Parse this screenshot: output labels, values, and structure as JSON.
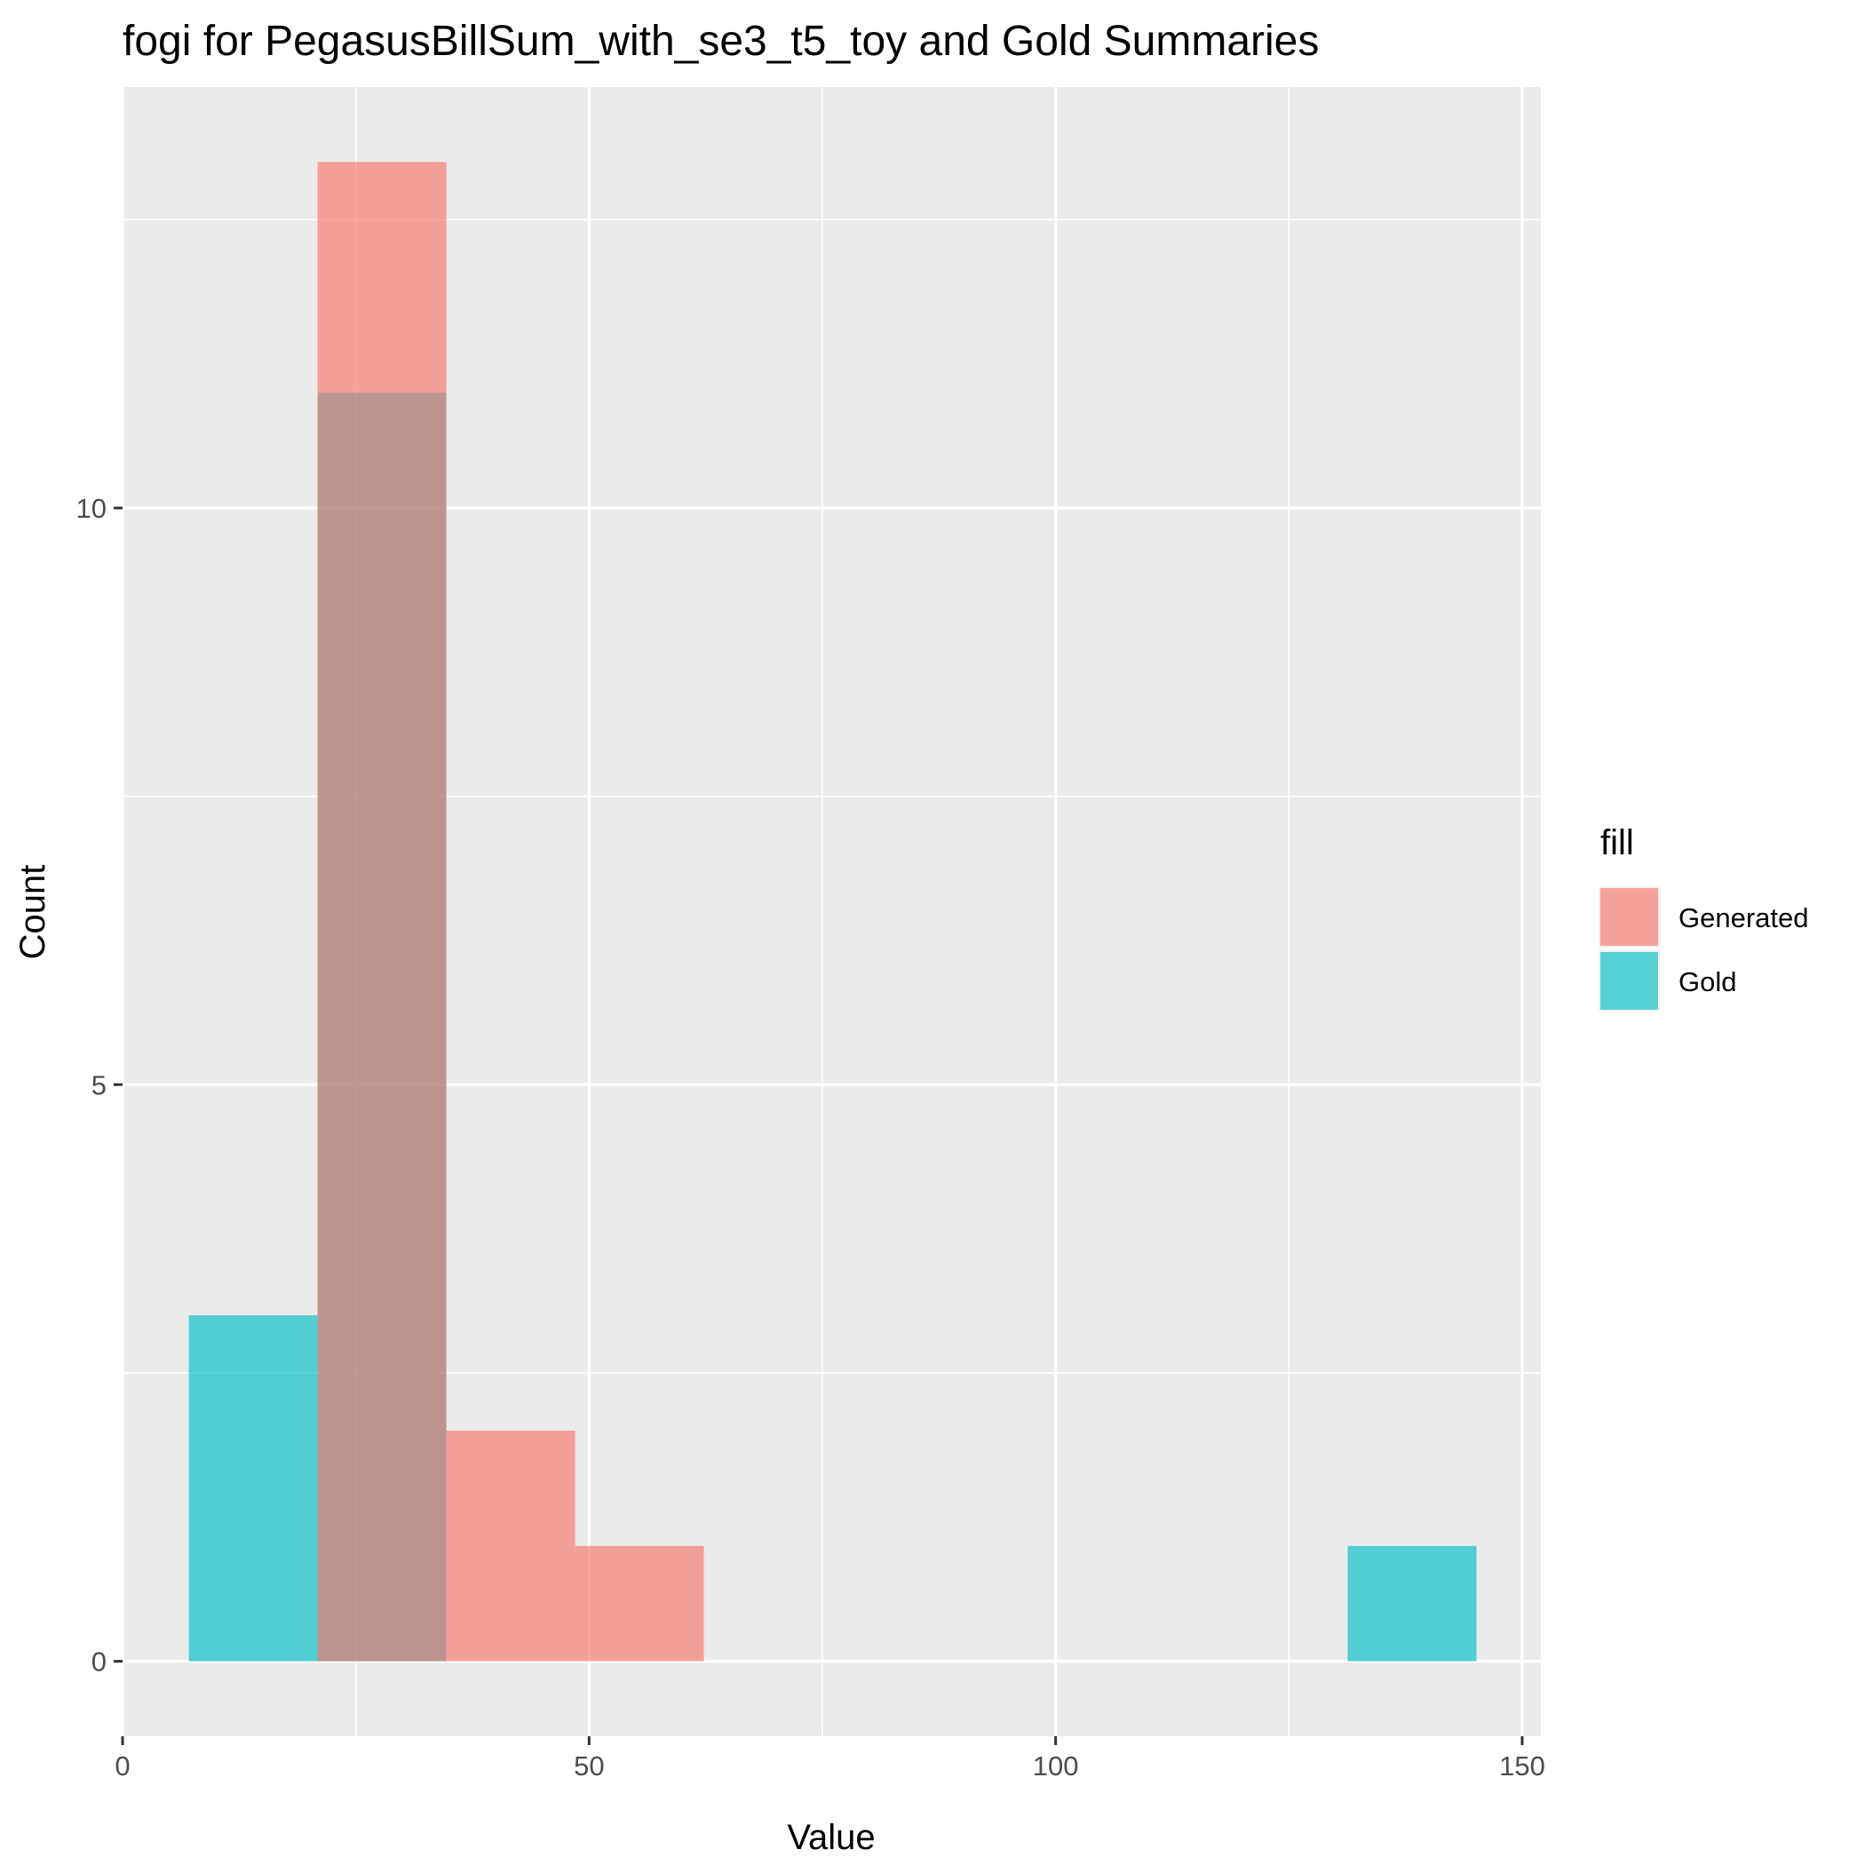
{
  "chart_data": {
    "type": "bar",
    "title": "fogi for PegasusBillSum_with_se3_t5_toy and Gold Summaries",
    "xlabel": "Value",
    "ylabel": "Count",
    "xlim": [
      0,
      150
    ],
    "ylim": [
      0,
      13
    ],
    "x_ticks": [
      0,
      50,
      100,
      150
    ],
    "x_tick_labels": [
      "0",
      "50",
      "100",
      "150"
    ],
    "y_ticks": [
      0,
      5,
      10
    ],
    "y_tick_labels": [
      "0",
      "5",
      "10"
    ],
    "grid": true,
    "legend": {
      "title": "fill",
      "placement": "right",
      "entries": [
        "Generated",
        "Gold"
      ]
    },
    "bin_width": 13.8,
    "series": [
      {
        "name": "Generated",
        "color": "#F8766D",
        "bins": [
          {
            "x_start": 20.9,
            "x_end": 34.7,
            "count": 13
          },
          {
            "x_start": 34.7,
            "x_end": 48.5,
            "count": 2
          },
          {
            "x_start": 48.5,
            "x_end": 62.3,
            "count": 1
          }
        ]
      },
      {
        "name": "Gold",
        "color": "#00BFC4",
        "bins": [
          {
            "x_start": 7.1,
            "x_end": 20.9,
            "count": 3
          },
          {
            "x_start": 20.9,
            "x_end": 34.7,
            "count": 11
          },
          {
            "x_start": 131.3,
            "x_end": 145.1,
            "count": 1
          }
        ]
      }
    ]
  }
}
